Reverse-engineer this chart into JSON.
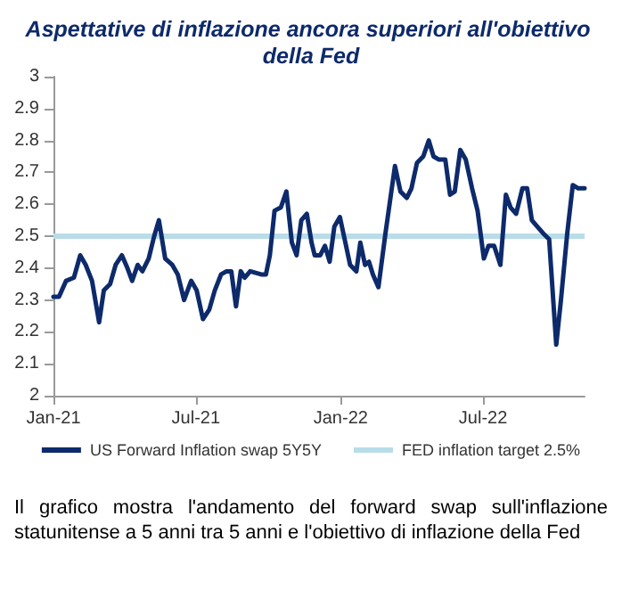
{
  "chart_data": {
    "type": "line",
    "title": "Aspettative di inflazione ancora superiori all'obiettivo della Fed",
    "x": [
      "2021-01-01",
      "2021-01-08",
      "2021-01-17",
      "2021-01-27",
      "2021-02-04",
      "2021-02-11",
      "2021-02-19",
      "2021-02-28",
      "2021-03-06",
      "2021-03-14",
      "2021-03-21",
      "2021-03-29",
      "2021-04-05",
      "2021-04-11",
      "2021-04-18",
      "2021-04-24",
      "2021-05-02",
      "2021-05-09",
      "2021-05-15",
      "2021-05-23",
      "2021-06-01",
      "2021-06-08",
      "2021-06-16",
      "2021-06-25",
      "2021-07-02",
      "2021-07-10",
      "2021-07-18",
      "2021-07-25",
      "2021-08-02",
      "2021-08-09",
      "2021-08-15",
      "2021-08-21",
      "2021-08-27",
      "2021-09-01",
      "2021-09-08",
      "2021-09-22",
      "2021-09-28",
      "2021-10-03",
      "2021-10-09",
      "2021-10-17",
      "2021-10-24",
      "2021-10-31",
      "2021-11-06",
      "2021-11-12",
      "2021-11-19",
      "2021-11-25",
      "2021-11-29",
      "2021-12-06",
      "2021-12-12",
      "2021-12-18",
      "2021-12-24",
      "2021-12-31",
      "2022-01-07",
      "2022-01-13",
      "2022-01-21",
      "2022-01-26",
      "2022-02-01",
      "2022-02-06",
      "2022-02-11",
      "2022-02-18",
      "2022-02-27",
      "2022-03-11",
      "2022-03-18",
      "2022-03-26",
      "2022-04-01",
      "2022-04-08",
      "2022-04-16",
      "2022-04-23",
      "2022-04-29",
      "2022-05-06",
      "2022-05-14",
      "2022-05-20",
      "2022-05-26",
      "2022-06-02",
      "2022-06-09",
      "2022-06-17",
      "2022-06-24",
      "2022-07-02",
      "2022-07-08",
      "2022-07-15",
      "2022-07-23",
      "2022-07-30",
      "2022-08-05",
      "2022-08-12",
      "2022-08-20",
      "2022-08-26",
      "2022-09-01",
      "2022-09-08",
      "2022-09-15",
      "2022-09-23",
      "2022-10-02",
      "2022-10-08",
      "2022-10-16",
      "2022-10-23",
      "2022-10-30",
      "2022-11-07"
    ],
    "series": [
      {
        "name": "US Forward Inflation swap 5Y5Y",
        "color": "#0d2a6b",
        "values": [
          2.31,
          2.31,
          2.36,
          2.37,
          2.44,
          2.41,
          2.36,
          2.23,
          2.33,
          2.35,
          2.41,
          2.44,
          2.4,
          2.36,
          2.41,
          2.39,
          2.43,
          2.5,
          2.55,
          2.43,
          2.41,
          2.38,
          2.3,
          2.36,
          2.33,
          2.24,
          2.27,
          2.33,
          2.38,
          2.39,
          2.39,
          2.28,
          2.39,
          2.37,
          2.39,
          2.38,
          2.38,
          2.44,
          2.58,
          2.59,
          2.64,
          2.48,
          2.44,
          2.55,
          2.57,
          2.48,
          2.44,
          2.44,
          2.47,
          2.42,
          2.53,
          2.56,
          2.48,
          2.41,
          2.39,
          2.48,
          2.41,
          2.42,
          2.38,
          2.34,
          2.51,
          2.72,
          2.64,
          2.62,
          2.65,
          2.73,
          2.75,
          2.8,
          2.75,
          2.74,
          2.74,
          2.63,
          2.64,
          2.77,
          2.74,
          2.65,
          2.58,
          2.43,
          2.47,
          2.47,
          2.41,
          2.63,
          2.59,
          2.57,
          2.65,
          2.65,
          2.55,
          2.53,
          2.51,
          2.49,
          2.16,
          2.3,
          2.51,
          2.66,
          2.65,
          2.65
        ]
      }
    ],
    "ref_lines": [
      {
        "axis": "y",
        "value": 2.5,
        "label": "FED inflation target 2.5%",
        "color": "#b9dce9"
      }
    ],
    "xlim": [
      "2021-01-01",
      "2022-11-07"
    ],
    "xticks": [
      {
        "value": "2021-01-01",
        "label": "Jan-21"
      },
      {
        "value": "2021-07-01",
        "label": "Jul-21"
      },
      {
        "value": "2022-01-01",
        "label": "Jan-22"
      },
      {
        "value": "2022-07-01",
        "label": "Jul-22"
      }
    ],
    "ylim": [
      2,
      3
    ],
    "yticks": [
      2,
      2.1,
      2.2,
      2.3,
      2.4,
      2.5,
      2.6,
      2.7,
      2.8,
      2.9,
      3
    ],
    "grid": false,
    "legend": "bottom",
    "marker": "none",
    "line_style": "solid",
    "annotations": [
      "Il grafico mostra l'andamento del forward swap sull'inflazione statunitense a 5 anni tra 5 anni e l'obiettivo di inflazione della Fed"
    ]
  }
}
